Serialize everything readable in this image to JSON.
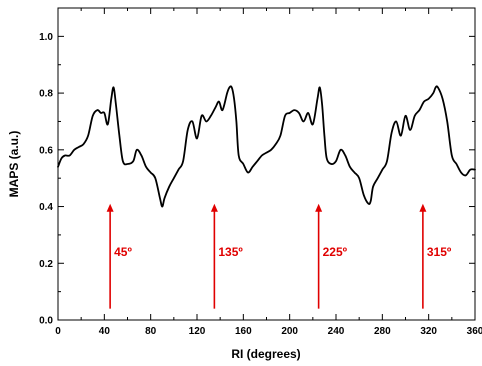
{
  "chart_data": {
    "type": "line",
    "xlabel": "RI (degrees)",
    "ylabel": "MAPS (a.u.)",
    "xlim": [
      0,
      360
    ],
    "ylim": [
      0,
      1.1
    ],
    "x_ticks": [
      0,
      40,
      80,
      120,
      160,
      200,
      240,
      280,
      320,
      360
    ],
    "y_ticks": [
      0.0,
      0.2,
      0.4,
      0.6,
      0.8,
      1.0
    ],
    "x_tick_labels": [
      "0",
      "40",
      "80",
      "120",
      "160",
      "200",
      "240",
      "280",
      "320",
      "360"
    ],
    "y_tick_labels": [
      "0.0",
      "0.2",
      "0.4",
      "0.6",
      "0.8",
      "1.0"
    ],
    "grid": false,
    "line_color": "#000000",
    "annotation_color": "#e00000",
    "series": [
      {
        "x": [
          0,
          3,
          6,
          10,
          14,
          18,
          22,
          26,
          30,
          34,
          37,
          40,
          43,
          46,
          48,
          50,
          53,
          56,
          60,
          65,
          68,
          72,
          76,
          80,
          84,
          88,
          90,
          92,
          96,
          100,
          104,
          108,
          112,
          116,
          120,
          124,
          128,
          132,
          136,
          139,
          142,
          146,
          148,
          150,
          152,
          154,
          156,
          160,
          164,
          168,
          172,
          176,
          180,
          184,
          188,
          192,
          196,
          200,
          204,
          208,
          212,
          216,
          220,
          224,
          226,
          228,
          230,
          232,
          236,
          240,
          244,
          248,
          252,
          256,
          260,
          264,
          268,
          270,
          272,
          276,
          280,
          284,
          288,
          292,
          296,
          300,
          304,
          308,
          312,
          316,
          320,
          324,
          326,
          328,
          332,
          336,
          340,
          344,
          348,
          352,
          356,
          360
        ],
        "y": [
          0.54,
          0.57,
          0.58,
          0.58,
          0.6,
          0.61,
          0.62,
          0.65,
          0.72,
          0.74,
          0.73,
          0.73,
          0.69,
          0.78,
          0.82,
          0.76,
          0.65,
          0.56,
          0.55,
          0.56,
          0.6,
          0.58,
          0.54,
          0.52,
          0.5,
          0.43,
          0.4,
          0.43,
          0.47,
          0.5,
          0.53,
          0.56,
          0.67,
          0.7,
          0.64,
          0.72,
          0.7,
          0.72,
          0.75,
          0.77,
          0.74,
          0.8,
          0.82,
          0.82,
          0.78,
          0.7,
          0.58,
          0.55,
          0.52,
          0.54,
          0.56,
          0.58,
          0.59,
          0.6,
          0.62,
          0.65,
          0.72,
          0.73,
          0.74,
          0.73,
          0.7,
          0.73,
          0.69,
          0.78,
          0.82,
          0.76,
          0.65,
          0.57,
          0.55,
          0.56,
          0.6,
          0.58,
          0.54,
          0.52,
          0.5,
          0.44,
          0.41,
          0.42,
          0.47,
          0.5,
          0.53,
          0.56,
          0.66,
          0.7,
          0.65,
          0.72,
          0.67,
          0.72,
          0.74,
          0.77,
          0.78,
          0.8,
          0.82,
          0.82,
          0.78,
          0.7,
          0.58,
          0.55,
          0.52,
          0.51,
          0.53,
          0.53
        ]
      }
    ],
    "annotations": [
      {
        "label": "45º",
        "x": 45,
        "y_start": 0.04,
        "y_end": 0.41
      },
      {
        "label": "135º",
        "x": 135,
        "y_start": 0.04,
        "y_end": 0.41
      },
      {
        "label": "225º",
        "x": 225,
        "y_start": 0.04,
        "y_end": 0.41
      },
      {
        "label": "315º",
        "x": 315,
        "y_start": 0.04,
        "y_end": 0.41
      }
    ]
  }
}
